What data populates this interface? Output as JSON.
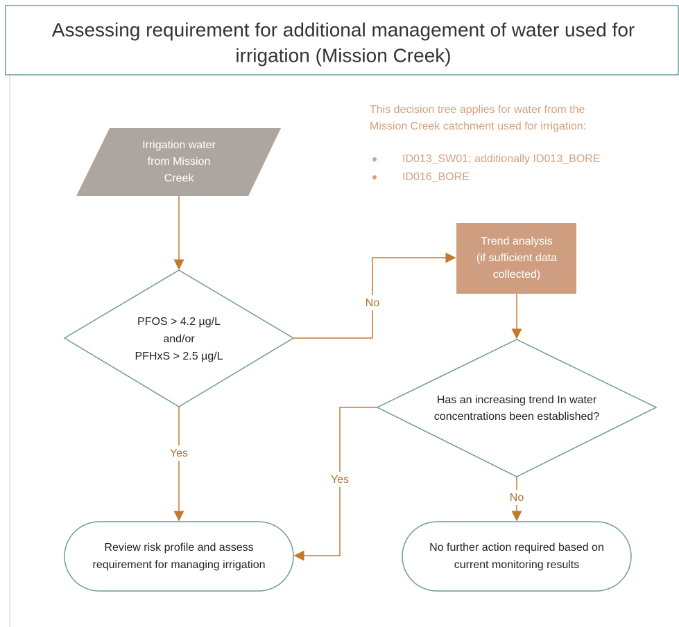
{
  "header": {
    "title": [
      "Assessing requirement for additional management of water used for",
      "irrigation (Mission Creek)"
    ]
  },
  "note": {
    "intro": [
      "This decision tree applies for water from the",
      "Mission Creek catchment used for irrigation:"
    ],
    "items": [
      "ID013_SW01; additionally ID013_BORE",
      "ID016_BORE"
    ]
  },
  "nodes": [
    {
      "label": [
        "Irrigation water",
        "from Mission",
        "Creek"
      ]
    },
    {
      "label": [
        "PFOS > 4.2 µg/L",
        "and/or",
        "PFHxS > 2.5 µg/L"
      ]
    },
    {
      "label": [
        "Trend analysis",
        "(if sufficient data",
        "collected)"
      ]
    },
    {
      "label": [
        "Has an increasing trend In water",
        "concentrations been established?"
      ]
    },
    {
      "label": [
        "Review risk profile and assess",
        "requirement for managing irrigation"
      ]
    },
    {
      "label": [
        "No further action required based on",
        "current monitoring results"
      ]
    }
  ],
  "edges": [
    {
      "label": "No"
    },
    {
      "label": "Yes"
    },
    {
      "label": "Yes"
    },
    {
      "label": "No"
    }
  ]
}
